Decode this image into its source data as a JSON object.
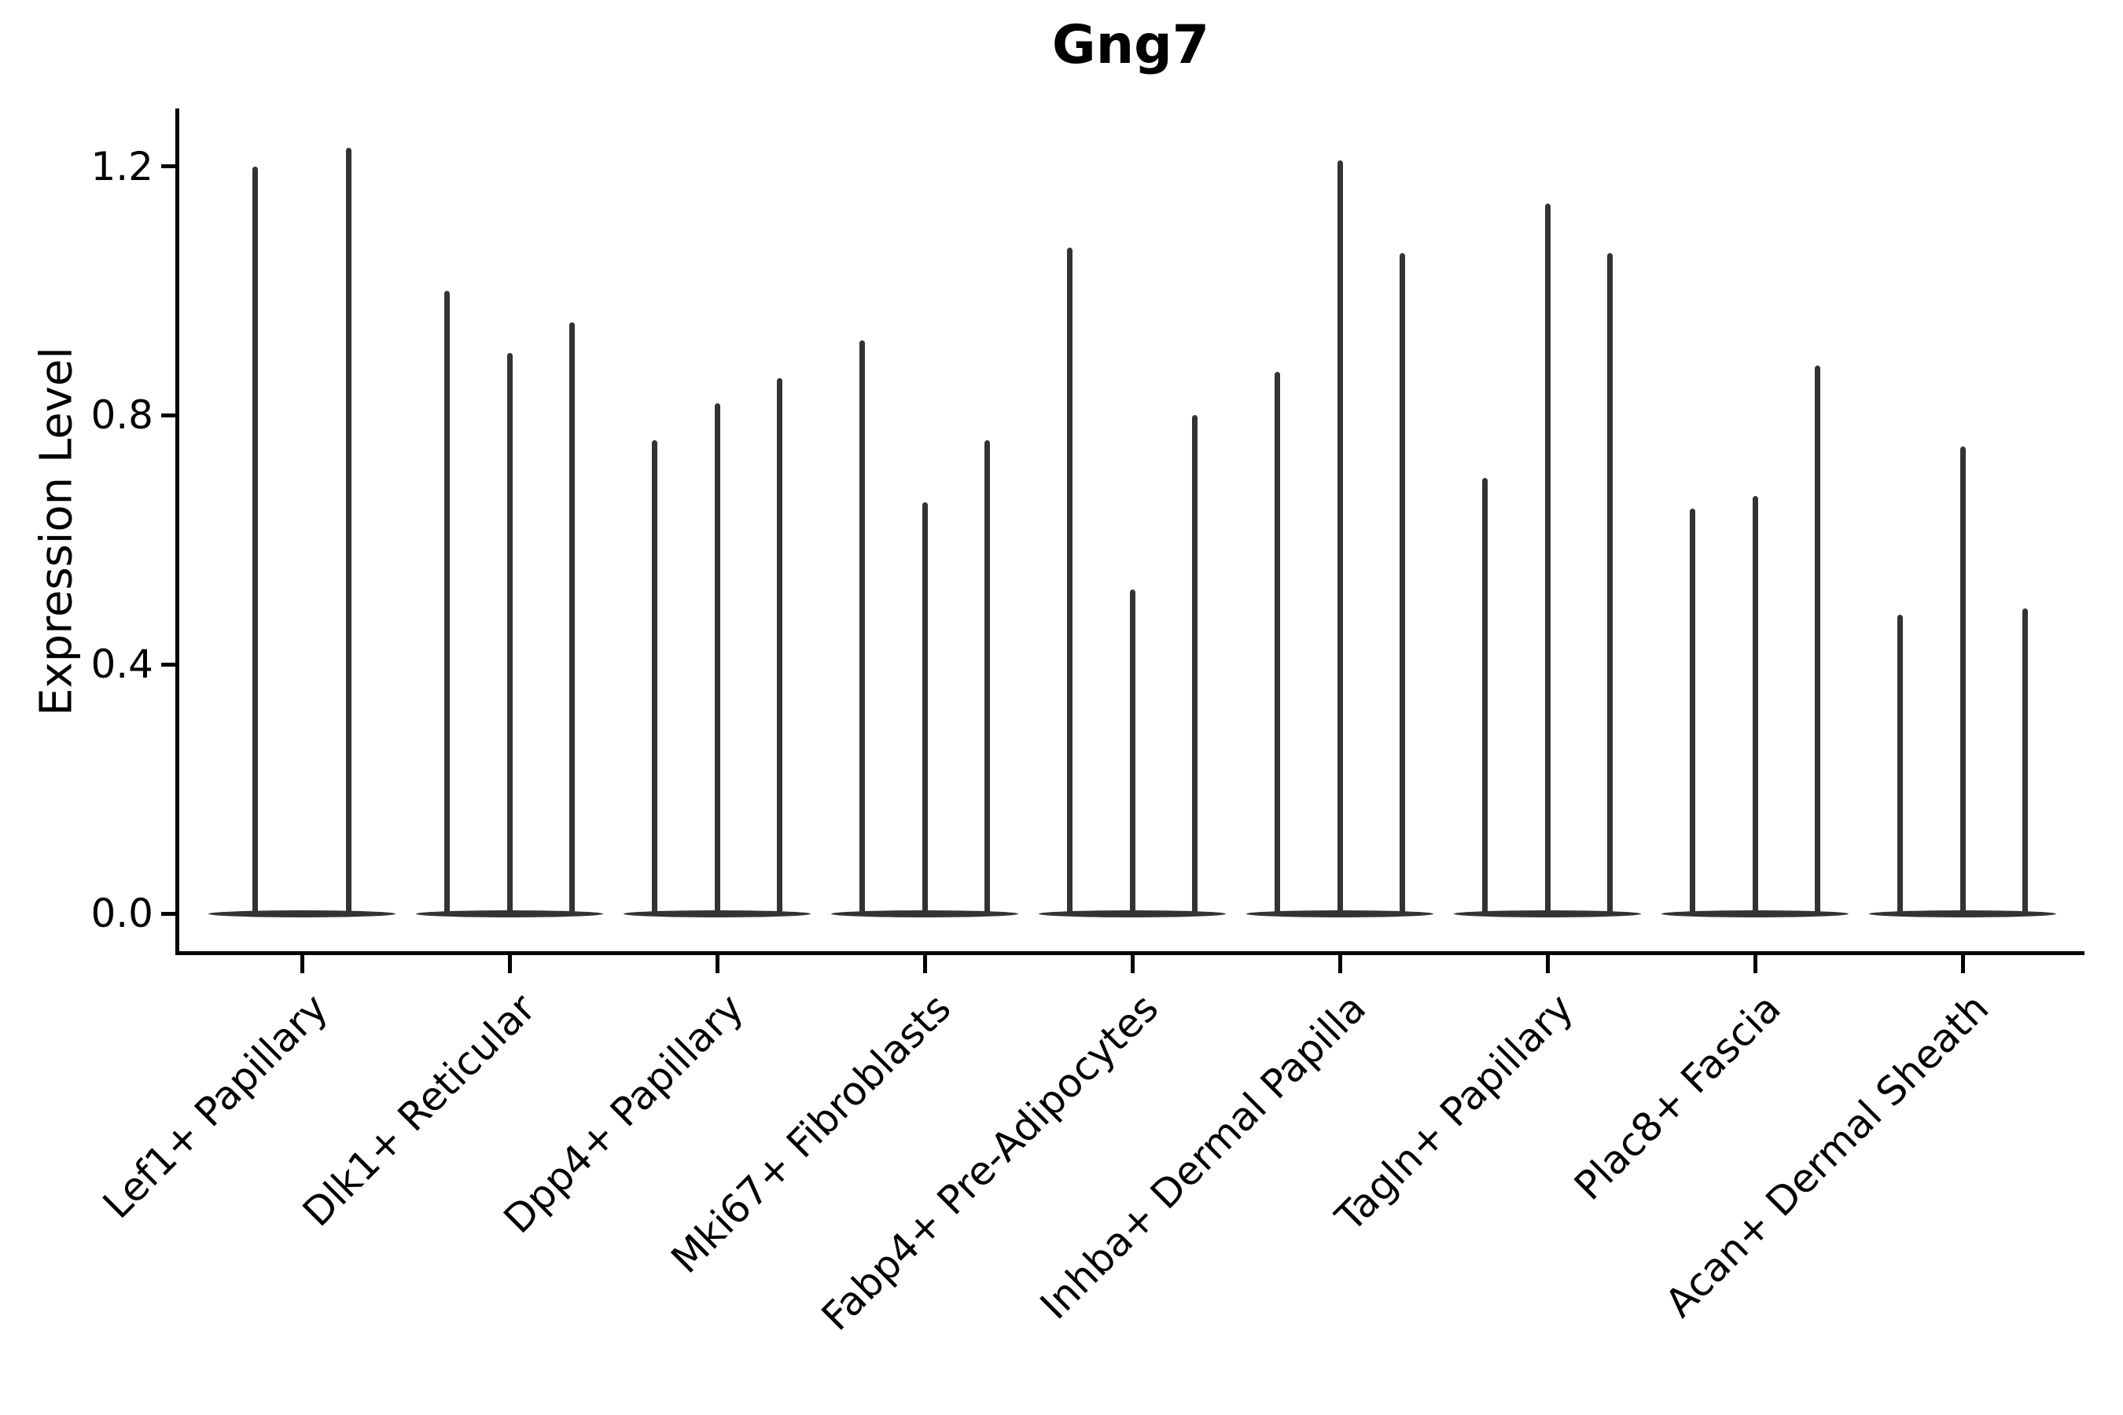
{
  "chart_data": {
    "type": "violin",
    "title": "Gng7",
    "ylabel": "Expression Level",
    "xlabel": "",
    "yticks": [
      0.0,
      0.4,
      0.8,
      1.2
    ],
    "ylim": [
      -0.06,
      1.29
    ],
    "grid": false,
    "legend": "none",
    "style_note": "Seurat-style split violin plot; expression concentrated at 0 so violins render as a flat base lens at 0 with one thin density spike per split reaching its max expression value",
    "categories": [
      "Lef1+ Papillary",
      "Dlk1+ Reticular",
      "Dpp4+ Papillary",
      "Mki67+ Fibroblasts",
      "Fabp4+ Pre-Adipocytes",
      "Inhba+ Dermal Papilla",
      "Tagln+ Papillary",
      "Plac8+ Fascia",
      "Acan+ Dermal Sheath"
    ],
    "violin_max_values": [
      [
        1.2,
        1.23
      ],
      [
        1.0,
        0.9,
        0.95
      ],
      [
        0.76,
        0.82,
        0.86
      ],
      [
        0.92,
        0.66,
        0.76
      ],
      [
        1.07,
        0.52,
        0.8
      ],
      [
        0.87,
        1.21,
        1.06
      ],
      [
        0.7,
        1.14,
        1.06
      ],
      [
        0.65,
        0.67,
        0.88
      ],
      [
        0.48,
        0.75,
        0.49
      ]
    ],
    "colors": {
      "violin": "#333333",
      "axis": "#000000",
      "text": "#000000",
      "background": "#ffffff"
    }
  }
}
